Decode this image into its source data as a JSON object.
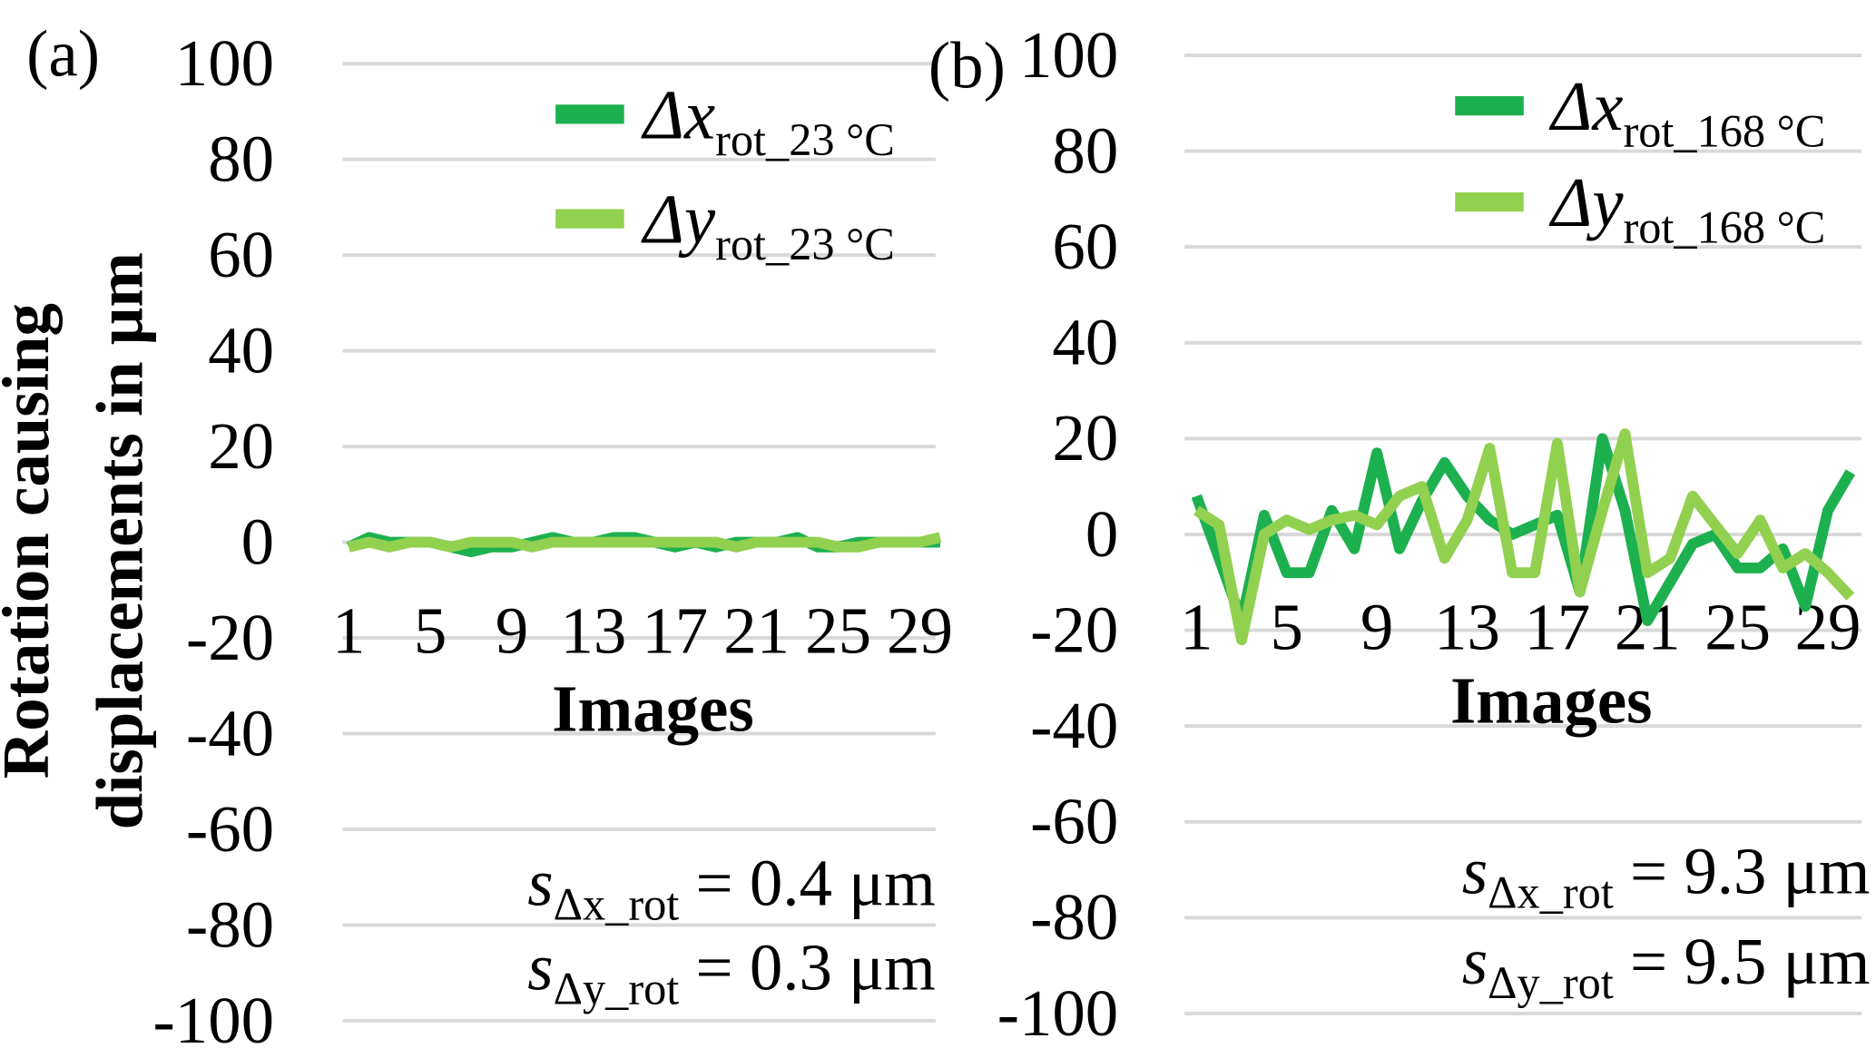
{
  "chart_data": [
    {
      "type": "line",
      "panel": "(a)",
      "ylabel": [
        "Rotation causing",
        "displacements in μm"
      ],
      "xlabel": "Images",
      "categories": [
        "1",
        null,
        null,
        null,
        "5",
        null,
        null,
        null,
        "9",
        null,
        null,
        null,
        "13",
        null,
        null,
        null,
        "17",
        null,
        null,
        null,
        "21",
        null,
        null,
        null,
        "25",
        null,
        null,
        null,
        "29",
        null
      ],
      "series": [
        {
          "name": "Δx",
          "subscript": "rot_23 °C",
          "color": "#1db04f",
          "values": [
            -1,
            1,
            0,
            0,
            0,
            -1,
            -2,
            -1,
            -1,
            0,
            1,
            0,
            0,
            1,
            1,
            0,
            -1,
            0,
            -1,
            0,
            0,
            0,
            1,
            -1,
            -1,
            0,
            0,
            0,
            0,
            0
          ]
        },
        {
          "name": "Δy",
          "subscript": "rot_23 °C",
          "color": "#92d050",
          "values": [
            -1,
            0,
            -1,
            0,
            0,
            -1,
            0,
            0,
            0,
            -1,
            0,
            0,
            0,
            0,
            0,
            0,
            0,
            0,
            0,
            -1,
            0,
            0,
            0,
            0,
            -1,
            -1,
            0,
            0,
            0,
            1
          ]
        }
      ],
      "ylim": [
        -100,
        100
      ],
      "yticks": [
        -100,
        -80,
        -60,
        -40,
        -20,
        0,
        20,
        40,
        60,
        80,
        100
      ],
      "grid": true,
      "annotations": [
        {
          "symbol": "s",
          "subscript": "Δx_rot",
          "text": " = 0.4 μm"
        },
        {
          "symbol": "s",
          "subscript": "Δy_rot",
          "text": " = 0.3 μm"
        }
      ]
    },
    {
      "type": "line",
      "panel": "(b)",
      "xlabel": "Images",
      "categories": [
        "1",
        null,
        null,
        null,
        "5",
        null,
        null,
        null,
        "9",
        null,
        null,
        null,
        "13",
        null,
        null,
        null,
        "17",
        null,
        null,
        null,
        "21",
        null,
        null,
        null,
        "25",
        null,
        null,
        null,
        "29",
        null
      ],
      "series": [
        {
          "name": "Δx",
          "subscript": "rot_168 °C",
          "color": "#1db04f",
          "values": [
            8,
            -5,
            -18,
            4,
            -8,
            -8,
            5,
            -3,
            17,
            -3,
            7,
            15,
            8,
            3,
            0,
            2,
            4,
            -12,
            20,
            5,
            -18,
            -10,
            -2,
            0,
            -7,
            -7,
            -3,
            -15,
            5,
            13
          ]
        },
        {
          "name": "Δy",
          "subscript": "rot_168 °C",
          "color": "#92d050",
          "values": [
            5,
            2,
            -22,
            0,
            3,
            1,
            3,
            4,
            2,
            8,
            10,
            -5,
            3,
            18,
            -8,
            -8,
            19,
            -12,
            5,
            21,
            -8,
            -5,
            8,
            2,
            -4,
            3,
            -7,
            -4,
            -8,
            -13
          ]
        }
      ],
      "ylim": [
        -100,
        100
      ],
      "yticks": [
        -100,
        -80,
        -60,
        -40,
        -20,
        0,
        20,
        40,
        60,
        80,
        100
      ],
      "grid": true,
      "annotations": [
        {
          "symbol": "s",
          "subscript": "Δx_rot",
          "text": " = 9.3 μm"
        },
        {
          "symbol": "s",
          "subscript": "Δy_rot",
          "text": " = 9.5 μm"
        }
      ]
    }
  ]
}
